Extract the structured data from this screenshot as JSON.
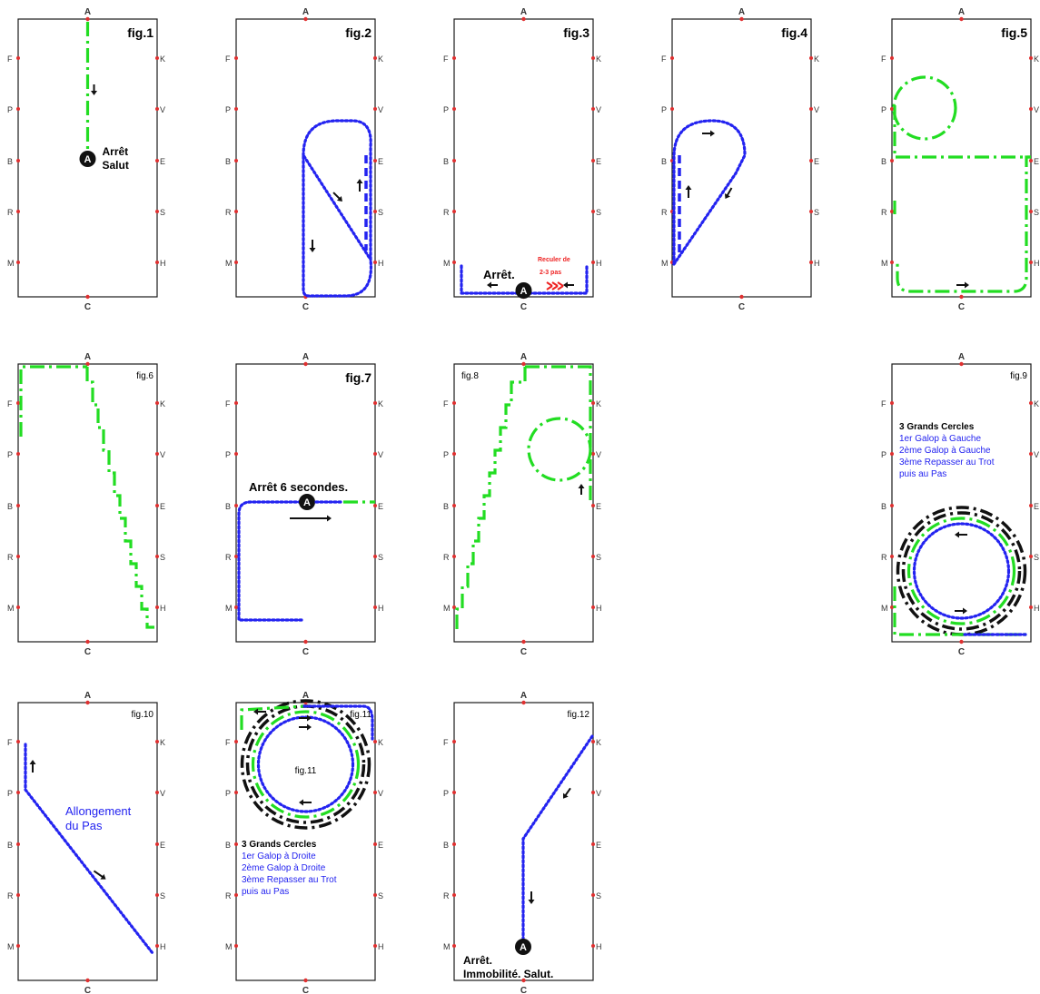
{
  "letters": {
    "top": "A",
    "bottom": "C",
    "left": [
      "F",
      "P",
      "B",
      "R",
      "M"
    ],
    "right": [
      "K",
      "V",
      "E",
      "S",
      "H"
    ]
  },
  "marker_letter": "A",
  "colors": {
    "arena_border": "#1a1a1a",
    "letter": "#333333",
    "letter_mark": "#e03030",
    "green_track": "#22dd22",
    "blue_track": "#2323f0",
    "black_track": "#111111",
    "blue_text": "#2323f0",
    "red_text": "#ee2222"
  },
  "figures": [
    {
      "title": "fig.1",
      "notes": [
        "Arrêt",
        "Salut"
      ]
    },
    {
      "title": "fig.2",
      "notes": []
    },
    {
      "title": "fig.3",
      "notes": [
        "Arrêt.",
        "Reculer de",
        "2-3 pas"
      ]
    },
    {
      "title": "fig.4",
      "notes": []
    },
    {
      "title": "fig.5",
      "notes": []
    },
    {
      "title": "fig.6",
      "notes": []
    },
    {
      "title": "fig.7",
      "notes": [
        "Arrêt 6 secondes."
      ]
    },
    {
      "title": "fig.8",
      "notes": []
    },
    {
      "title": "fig.9",
      "notes": [
        "3 Grands Cercles",
        "1er Galop à Gauche",
        "2ème Galop à Gauche",
        "3ème Repasser au Trot",
        "puis au Pas"
      ]
    },
    {
      "title": "fig.10",
      "notes": [
        "Allongement",
        "du Pas"
      ]
    },
    {
      "title": "fig.11",
      "notes": [
        "3 Grands Cercles",
        "1er Galop à Droite",
        "2ème Galop à Droite",
        "3ème Repasser au Trot",
        "puis au Pas"
      ]
    },
    {
      "title": "fig.12",
      "notes": [
        "Arrêt.",
        "Immobilité. Salut."
      ]
    }
  ]
}
